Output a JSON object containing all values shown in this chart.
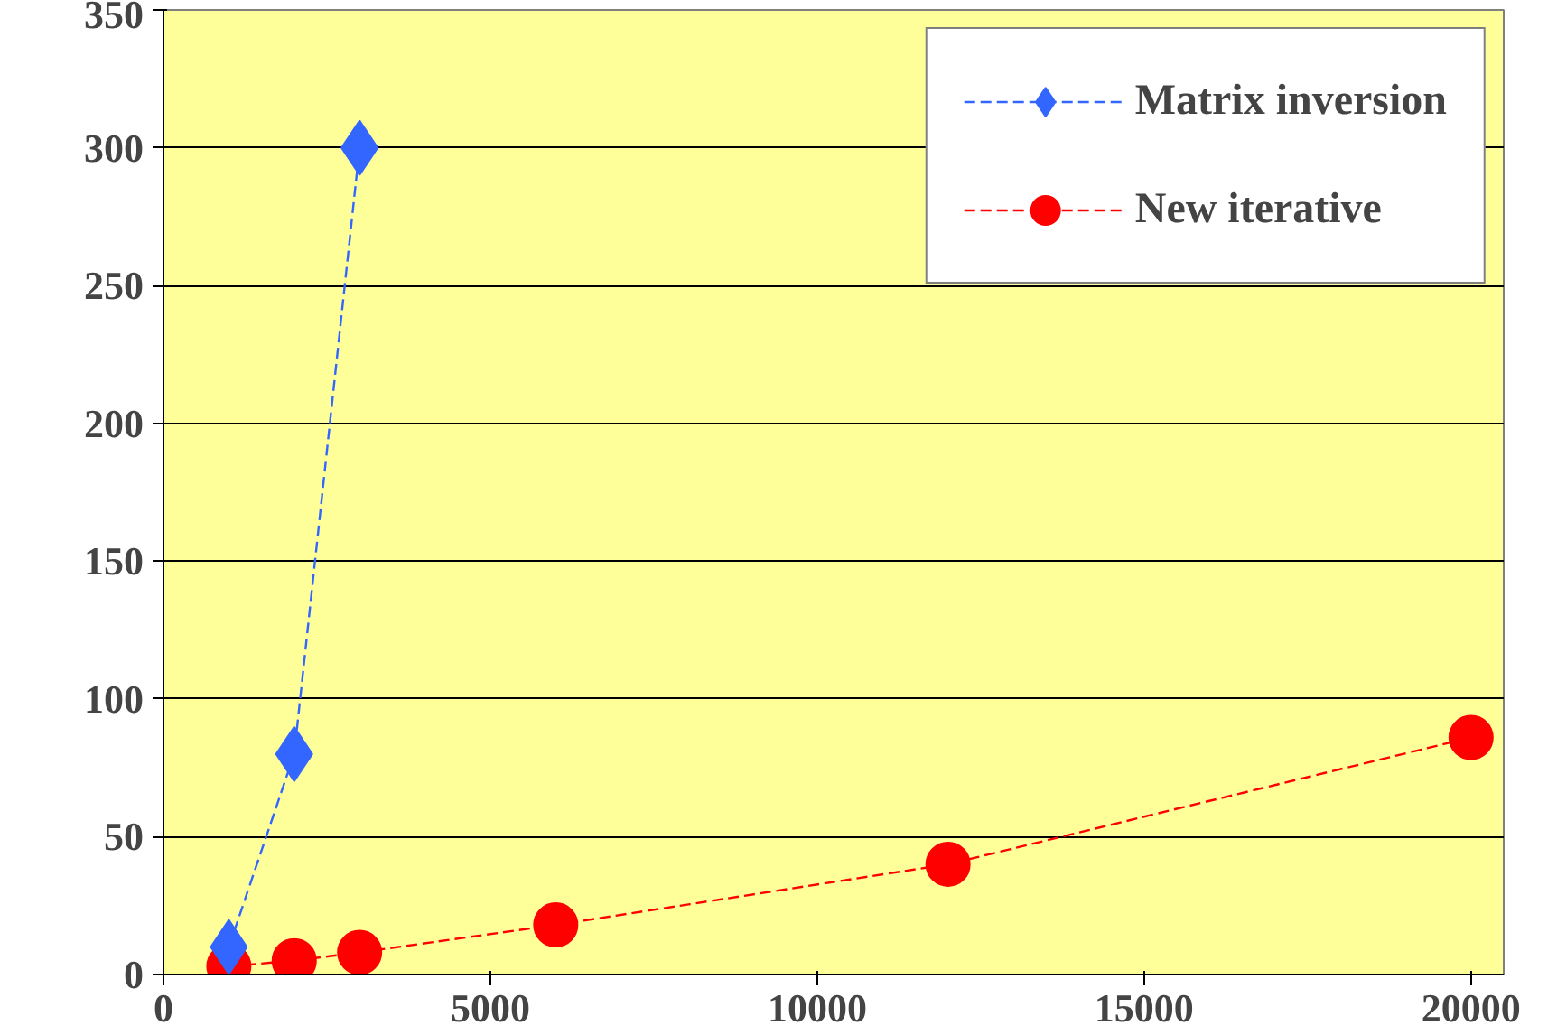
{
  "chart_data": {
    "type": "line",
    "xlim": [
      0,
      20500
    ],
    "xticks": [
      0,
      5000,
      10000,
      15000,
      20000
    ],
    "ylim": [
      0,
      350
    ],
    "yticks": [
      0,
      50,
      100,
      150,
      200,
      250,
      300,
      350
    ],
    "grid": "y",
    "legend": "top right",
    "line_style": "dashed",
    "series": [
      {
        "name": "Matrix inversion",
        "color": "#3366ff",
        "marker": "diamond",
        "x": [
          1000,
          2000,
          3000
        ],
        "values": [
          10,
          80,
          300
        ]
      },
      {
        "name": "New iterative",
        "color": "#ff0000",
        "marker": "circle",
        "x": [
          1000,
          2000,
          3000,
          6000,
          12000,
          20000
        ],
        "values": [
          3,
          5,
          8,
          18,
          40,
          86
        ]
      }
    ]
  }
}
